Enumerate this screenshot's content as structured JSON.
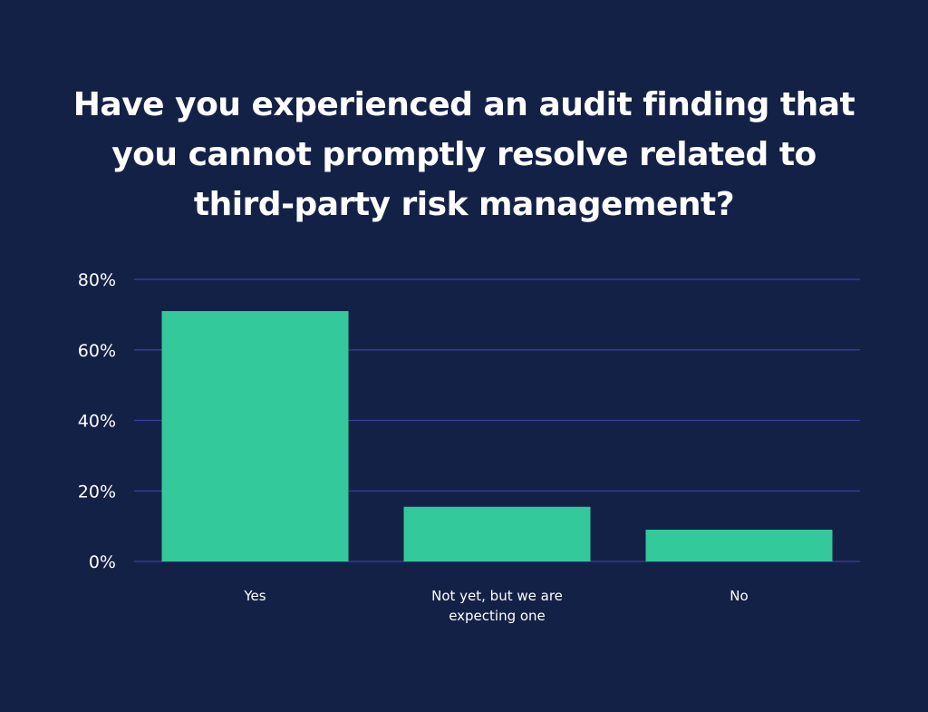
{
  "colors": {
    "background": "#142147",
    "bar": "#34c99b",
    "grid": "#3a3f9e",
    "text": "#ffffff"
  },
  "title_lines": [
    "Have you experienced an audit finding that",
    "you cannot promptly resolve related to",
    "third-party risk management?"
  ],
  "chart_data": {
    "type": "bar",
    "title": "Have you experienced an audit finding that you cannot promptly resolve related to third-party risk management?",
    "categories": [
      [
        "Yes"
      ],
      [
        "Not yet, but we are",
        "expecting one"
      ],
      [
        "No"
      ]
    ],
    "values": [
      71,
      15.5,
      9
    ],
    "ylim": [
      0,
      80
    ],
    "yticks": [
      0,
      20,
      40,
      60,
      80
    ],
    "ytick_labels": [
      "0%",
      "20%",
      "40%",
      "60%",
      "80%"
    ],
    "grid": true,
    "legend": "none"
  }
}
